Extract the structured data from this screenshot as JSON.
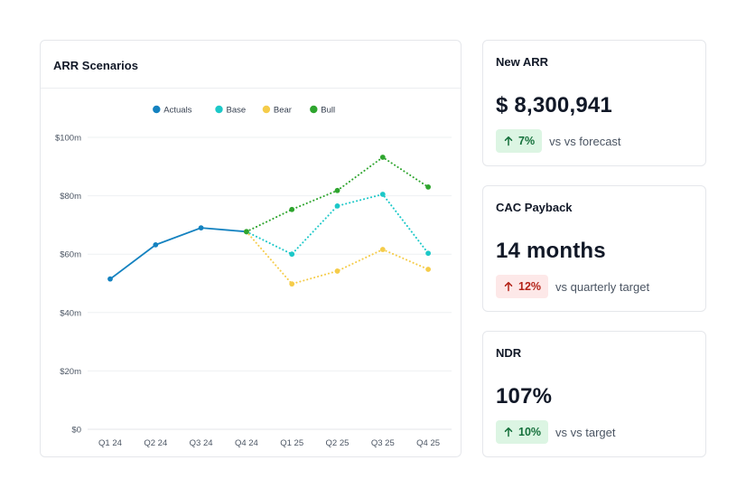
{
  "chart_card": {
    "title": "ARR Scenarios"
  },
  "chart_data": {
    "type": "line",
    "categories": [
      "Q1 24",
      "Q2 24",
      "Q3 24",
      "Q4 24",
      "Q1 25",
      "Q2 25",
      "Q3 25",
      "Q4 25"
    ],
    "series": [
      {
        "name": "Actuals",
        "color": "#1482c0",
        "style": "solid",
        "values": [
          51.5,
          63.2,
          69.0,
          67.7,
          null,
          null,
          null,
          null
        ]
      },
      {
        "name": "Base",
        "color": "#1cc8c8",
        "style": "dotted",
        "values": [
          null,
          null,
          null,
          67.7,
          60.0,
          76.5,
          80.5,
          60.3
        ]
      },
      {
        "name": "Bear",
        "color": "#f5cc4a",
        "style": "dotted",
        "values": [
          null,
          null,
          null,
          67.7,
          49.8,
          54.2,
          61.6,
          54.8
        ]
      },
      {
        "name": "Bull",
        "color": "#2ea52e",
        "style": "dotted",
        "values": [
          null,
          null,
          null,
          67.7,
          75.3,
          81.8,
          93.2,
          83.0
        ]
      }
    ],
    "y_ticks": [
      {
        "value": 0,
        "label": "$0"
      },
      {
        "value": 20,
        "label": "$20m"
      },
      {
        "value": 40,
        "label": "$40m"
      },
      {
        "value": 60,
        "label": "$60m"
      },
      {
        "value": 80,
        "label": "$80m"
      },
      {
        "value": 100,
        "label": "$100m"
      }
    ],
    "ylim": [
      0,
      100
    ],
    "grid": true,
    "legend": "top-center"
  },
  "kpis": [
    {
      "title": "New ARR",
      "value": "$ 8,300,941",
      "change": "7%",
      "direction": "up",
      "compare": "vs vs forecast"
    },
    {
      "title": "CAC Payback",
      "value": "14 months",
      "change": "12%",
      "direction": "down",
      "compare": "vs quarterly target"
    },
    {
      "title": "NDR",
      "value": "107%",
      "change": "10%",
      "direction": "up",
      "compare": "vs vs target"
    }
  ]
}
